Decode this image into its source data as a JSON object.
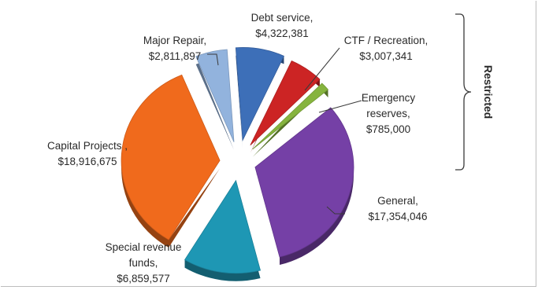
{
  "chart_data": {
    "type": "pie",
    "style": "3d-exploded",
    "slices": [
      {
        "name": "Debt service",
        "value": 4322381,
        "value_label": "$4,322,381",
        "color": "#3d6fb8"
      },
      {
        "name": "CTF / Recreation",
        "value": 3007341,
        "value_label": "$3,007,341",
        "color": "#cc2424"
      },
      {
        "name": "Emergency reserves",
        "value": 785000,
        "value_label": "$785,000",
        "color": "#86b43e"
      },
      {
        "name": "General",
        "value": 17354046,
        "value_label": "$17,354,046",
        "color": "#7540a6"
      },
      {
        "name": "Special revenue funds",
        "value": 6859577,
        "value_label": "$6,859,577",
        "color": "#1e97b4"
      },
      {
        "name": "Capital Projects",
        "value": 18916675,
        "value_label": "$18,916,675",
        "color": "#f06a1c"
      },
      {
        "name": "Major Repair",
        "value": 2811897,
        "value_label": "$2,811,897",
        "color": "#92b3dd"
      }
    ],
    "labels": [
      {
        "name": "debt-service",
        "lines": [
          "Debt service,",
          "$4,322,381"
        ]
      },
      {
        "name": "ctf-recreation",
        "lines": [
          "CTF / Recreation,",
          "$3,007,341"
        ]
      },
      {
        "name": "emergency-reserves",
        "lines": [
          "Emergency",
          "reserves,",
          "$785,000"
        ]
      },
      {
        "name": "general",
        "lines": [
          "General,",
          "$17,354,046"
        ]
      },
      {
        "name": "special-revenue-funds",
        "lines": [
          "Special revenue",
          "funds,",
          "$6,859,577"
        ]
      },
      {
        "name": "capital-projects",
        "lines": [
          "Capital Projects ,",
          "$18,916,675"
        ]
      },
      {
        "name": "major-repair",
        "lines": [
          "Major Repair,",
          "$2,811,897"
        ]
      }
    ],
    "bracket_label": "Restricted",
    "legend": "none"
  }
}
